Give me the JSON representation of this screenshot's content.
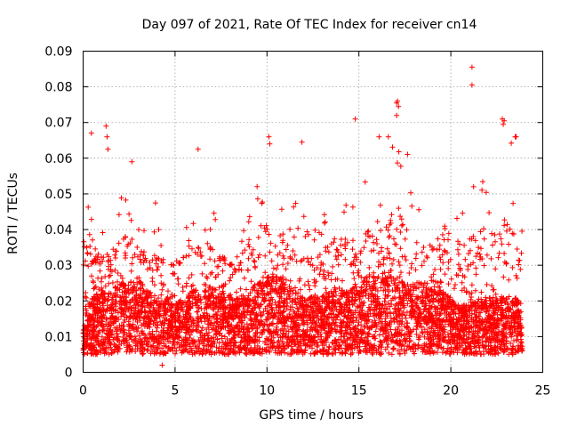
{
  "chart_data": {
    "type": "scatter",
    "title": "Day 097 of 2021, Rate Of TEC Index for receiver cn14",
    "xlabel": "GPS time / hours",
    "ylabel": "ROTI / TECUs",
    "xlim": [
      0,
      25
    ],
    "ylim": [
      0,
      0.09
    ],
    "xticks": [
      "0",
      "5",
      "10",
      "15",
      "20",
      "25"
    ],
    "yticks": [
      "0",
      "0.01",
      "0.02",
      "0.03",
      "0.04",
      "0.05",
      "0.06",
      "0.07",
      "0.08",
      "0.09"
    ],
    "grid": true,
    "marker": "+",
    "color": "#ff0000",
    "series": [
      {
        "name": "ROTI",
        "profile_hours": [
          0,
          0.3,
          0.5,
          1,
          1.5,
          2,
          2.5,
          3,
          3.5,
          4,
          4.5,
          5,
          5.5,
          6,
          6.5,
          7,
          7.5,
          8,
          8.5,
          9,
          9.5,
          10,
          10.5,
          11,
          11.5,
          12,
          12.5,
          13,
          13.5,
          14,
          14.5,
          15,
          15.5,
          16,
          16.5,
          17,
          17.5,
          18,
          18.5,
          19,
          19.5,
          20,
          20.5,
          21,
          21.5,
          22,
          22.5,
          23,
          23.5,
          23.9
        ],
        "profile_baseline": [
          0.01,
          0.012,
          0.013,
          0.014,
          0.014,
          0.015,
          0.015,
          0.016,
          0.014,
          0.013,
          0.013,
          0.012,
          0.013,
          0.014,
          0.014,
          0.015,
          0.014,
          0.013,
          0.013,
          0.014,
          0.015,
          0.016,
          0.016,
          0.015,
          0.014,
          0.013,
          0.013,
          0.013,
          0.014,
          0.014,
          0.014,
          0.015,
          0.016,
          0.016,
          0.016,
          0.016,
          0.015,
          0.015,
          0.015,
          0.014,
          0.014,
          0.013,
          0.012,
          0.012,
          0.013,
          0.013,
          0.013,
          0.013,
          0.013,
          0.012
        ],
        "profile_envelope": [
          0.045,
          0.05,
          0.045,
          0.04,
          0.035,
          0.05,
          0.055,
          0.045,
          0.04,
          0.05,
          0.03,
          0.035,
          0.04,
          0.045,
          0.05,
          0.05,
          0.035,
          0.03,
          0.035,
          0.05,
          0.06,
          0.065,
          0.06,
          0.055,
          0.05,
          0.045,
          0.04,
          0.045,
          0.05,
          0.055,
          0.05,
          0.055,
          0.06,
          0.065,
          0.065,
          0.075,
          0.065,
          0.055,
          0.05,
          0.045,
          0.045,
          0.04,
          0.045,
          0.05,
          0.06,
          0.055,
          0.06,
          0.07,
          0.065,
          0.04
        ],
        "outliers": [
          {
            "x": 0.2,
            "y": 0.035
          },
          {
            "x": 0.45,
            "y": 0.067
          },
          {
            "x": 1.25,
            "y": 0.069
          },
          {
            "x": 1.3,
            "y": 0.066
          },
          {
            "x": 1.35,
            "y": 0.0625
          },
          {
            "x": 2.65,
            "y": 0.059
          },
          {
            "x": 4.3,
            "y": 0.002
          },
          {
            "x": 6.25,
            "y": 0.0625
          },
          {
            "x": 10.1,
            "y": 0.066
          },
          {
            "x": 10.15,
            "y": 0.064
          },
          {
            "x": 11.9,
            "y": 0.0645
          },
          {
            "x": 14.8,
            "y": 0.071
          },
          {
            "x": 16.1,
            "y": 0.066
          },
          {
            "x": 16.6,
            "y": 0.066
          },
          {
            "x": 17.05,
            "y": 0.0755
          },
          {
            "x": 17.1,
            "y": 0.076
          },
          {
            "x": 17.15,
            "y": 0.0745
          },
          {
            "x": 17.05,
            "y": 0.072
          },
          {
            "x": 21.15,
            "y": 0.0855
          },
          {
            "x": 21.15,
            "y": 0.0805
          },
          {
            "x": 22.8,
            "y": 0.071
          },
          {
            "x": 22.85,
            "y": 0.0695
          },
          {
            "x": 22.9,
            "y": 0.0705
          },
          {
            "x": 23.5,
            "y": 0.066
          },
          {
            "x": 23.55,
            "y": 0.066
          }
        ]
      }
    ]
  }
}
